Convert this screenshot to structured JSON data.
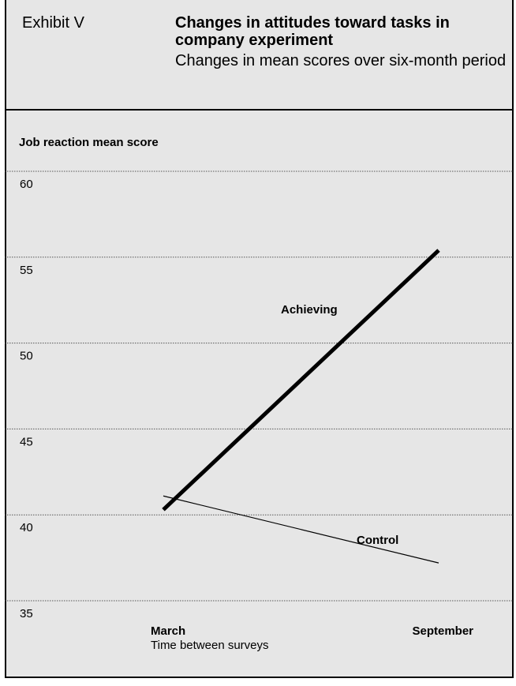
{
  "exhibit_label": "Exhibit V",
  "chart_data": {
    "type": "line",
    "title": "Changes in attitudes toward tasks in company experiment",
    "subtitle": "Changes in mean scores over six-month period",
    "ylabel": "Job reaction mean score",
    "xlabel": "Time between surveys",
    "categories": [
      "March",
      "September"
    ],
    "yticks": [
      "60",
      "55",
      "50",
      "45",
      "40",
      "35"
    ],
    "ylim": [
      35,
      60
    ],
    "grid": true,
    "series": [
      {
        "name": "Achieving",
        "values": [
          40.3,
          55.4
        ],
        "color": "#000000"
      },
      {
        "name": "Control",
        "values": [
          41.1,
          37.2
        ],
        "color": "#000000"
      }
    ]
  }
}
